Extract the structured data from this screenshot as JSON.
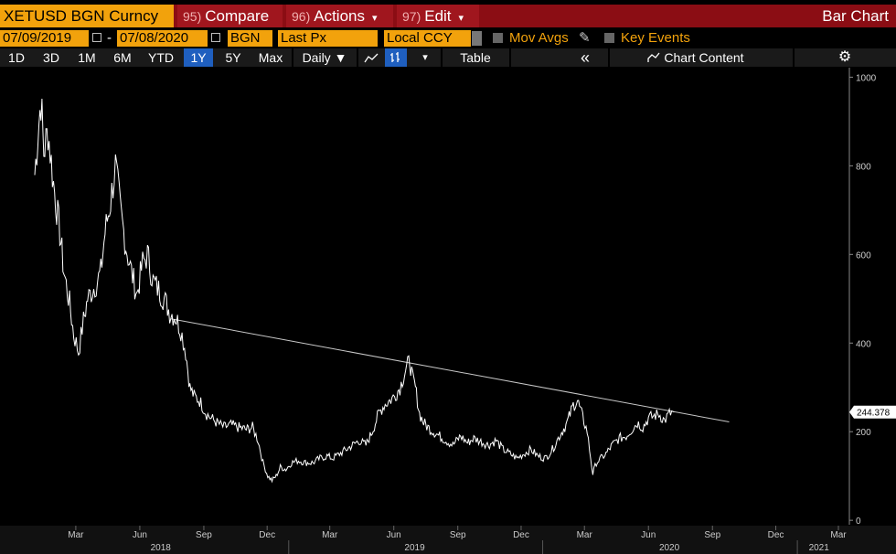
{
  "header": {
    "ticker": "XETUSD BGN Curncy",
    "menus": [
      {
        "num": "95)",
        "label": "Compare",
        "caret": ""
      },
      {
        "num": "96)",
        "label": "Actions",
        "caret": "▾"
      },
      {
        "num": "97)",
        "label": "Edit",
        "caret": "▾"
      }
    ],
    "view_title": "Bar Chart"
  },
  "controls": {
    "start_date": "07/09/2019",
    "date_sep": "-",
    "end_date": "07/08/2020",
    "source": "BGN",
    "field": "Last Px",
    "currency": "Local CCY",
    "mov_avgs": "Mov Avgs",
    "key_events": "Key Events"
  },
  "toolbar": {
    "ranges": [
      "1D",
      "3D",
      "1M",
      "6M",
      "YTD",
      "1Y",
      "5Y",
      "Max"
    ],
    "active_range": "1Y",
    "frequency": "Daily ▼",
    "table": "Table",
    "collapse": "«",
    "chart_content": "Chart Content"
  },
  "colors": {
    "accent": "#f2a20c",
    "header_bg": "#8b0d14",
    "active_button": "#1f5fbf",
    "price_line": "#ffffff",
    "trend_line": "#c8c8c8"
  },
  "chart_data": {
    "type": "line",
    "y_ticks": [
      0,
      200,
      400,
      600,
      800,
      1000
    ],
    "ylim": [
      -10,
      1005
    ],
    "x_ticks": [
      "Mar",
      "Jun",
      "Sep",
      "Dec",
      "Mar",
      "Jun",
      "Sep",
      "Dec",
      "Mar",
      "Jun",
      "Sep",
      "Dec",
      "Mar"
    ],
    "x_years": [
      "2018",
      "2019",
      "2020",
      "2021"
    ],
    "last_value": "244.378",
    "series": [
      {
        "x": [
          "2018-01-01",
          "2018-01-07",
          "2018-01-10",
          "2018-01-14",
          "2018-01-20",
          "2018-01-28",
          "2018-02-06",
          "2018-02-12",
          "2018-02-20",
          "2018-02-26",
          "2018-03-05",
          "2018-03-12",
          "2018-03-18",
          "2018-03-25",
          "2018-04-01",
          "2018-04-06",
          "2018-04-12",
          "2018-04-20",
          "2018-04-27",
          "2018-05-04",
          "2018-05-12",
          "2018-05-20",
          "2018-05-28",
          "2018-06-05",
          "2018-06-12",
          "2018-06-20",
          "2018-06-28",
          "2018-07-06",
          "2018-07-14",
          "2018-07-22",
          "2018-07-30",
          "2018-08-06",
          "2018-08-12",
          "2018-08-18",
          "2018-08-26",
          "2018-09-05",
          "2018-09-12",
          "2018-09-20",
          "2018-09-30",
          "2018-10-10",
          "2018-10-20",
          "2018-11-01",
          "2018-11-10",
          "2018-11-18",
          "2018-11-25",
          "2018-12-02",
          "2018-12-08",
          "2018-12-14",
          "2018-12-20",
          "2018-12-28",
          "2019-01-05",
          "2019-01-15",
          "2019-01-25",
          "2019-02-05",
          "2019-02-15",
          "2019-02-25",
          "2019-03-05",
          "2019-03-15",
          "2019-03-25",
          "2019-04-03",
          "2019-04-12",
          "2019-04-22",
          "2019-05-01",
          "2019-05-10",
          "2019-05-18",
          "2019-05-26",
          "2019-06-02",
          "2019-06-10",
          "2019-06-18",
          "2019-06-24",
          "2019-06-28",
          "2019-07-02",
          "2019-07-08",
          "2019-07-14",
          "2019-07-20",
          "2019-07-28",
          "2019-08-06",
          "2019-08-15",
          "2019-08-25",
          "2019-09-05",
          "2019-09-15",
          "2019-09-24",
          "2019-10-01",
          "2019-10-15",
          "2019-10-26",
          "2019-11-05",
          "2019-11-15",
          "2019-11-25",
          "2019-12-05",
          "2019-12-15",
          "2019-12-25",
          "2020-01-05",
          "2020-01-15",
          "2020-01-25",
          "2020-02-05",
          "2020-02-14",
          "2020-02-20",
          "2020-02-26",
          "2020-03-05",
          "2020-03-10",
          "2020-03-13",
          "2020-03-18",
          "2020-03-25",
          "2020-04-01",
          "2020-04-10",
          "2020-04-20",
          "2020-04-30",
          "2020-05-08",
          "2020-05-16",
          "2020-05-24",
          "2020-06-01",
          "2020-06-08",
          "2020-06-16",
          "2020-06-24",
          "2020-07-01",
          "2020-07-08"
        ],
        "y": [
          780,
          900,
          950,
          830,
          880,
          760,
          650,
          560,
          490,
          420,
          380,
          450,
          500,
          520,
          540,
          560,
          650,
          720,
          800,
          700,
          620,
          560,
          510,
          580,
          600,
          540,
          520,
          500,
          470,
          460,
          430,
          380,
          300,
          280,
          270,
          240,
          230,
          220,
          210,
          215,
          210,
          205,
          210,
          180,
          130,
          100,
          90,
          100,
          120,
          115,
          130,
          135,
          130,
          130,
          140,
          145,
          140,
          150,
          160,
          170,
          180,
          170,
          200,
          240,
          260,
          270,
          280,
          300,
          340,
          360,
          320,
          300,
          240,
          220,
          210,
          200,
          190,
          180,
          170,
          190,
          175,
          185,
          180,
          170,
          180,
          160,
          150,
          140,
          150,
          160,
          145,
          140,
          160,
          190,
          220,
          260,
          270,
          240,
          200,
          140,
          105,
          130,
          140,
          150,
          170,
          185,
          190,
          205,
          220,
          210,
          230,
          235,
          240,
          225,
          240,
          244.378
        ]
      }
    ],
    "trendline": {
      "x": [
        "2018-07-15",
        "2020-09-25"
      ],
      "y": [
        455,
        222
      ]
    }
  }
}
